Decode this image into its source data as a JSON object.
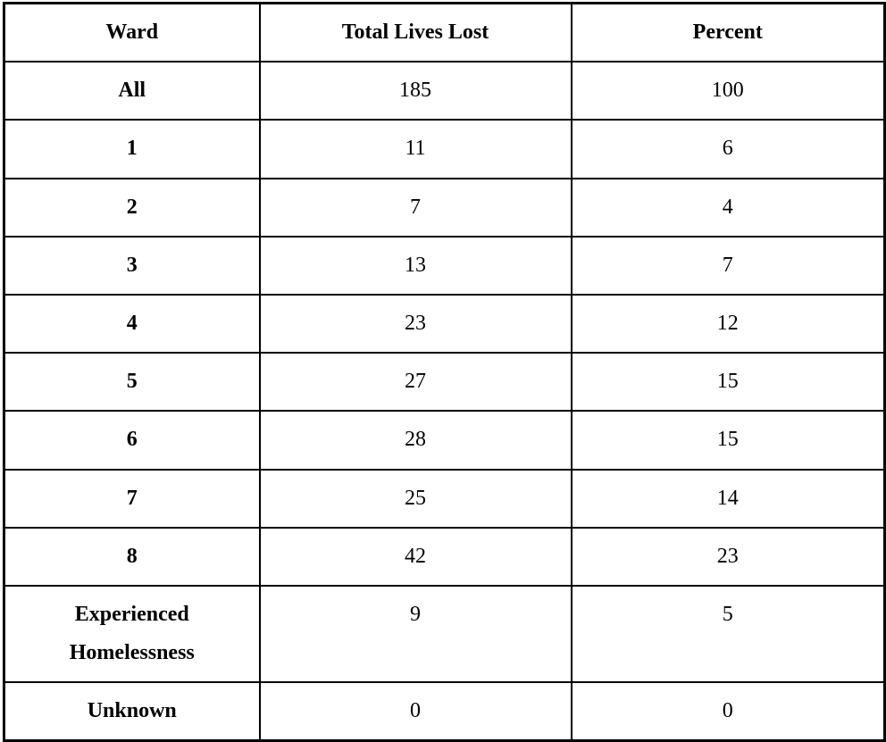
{
  "table": {
    "columns": [
      "Ward",
      "Total Lives Lost",
      "Percent"
    ],
    "rows": [
      {
        "ward": "All",
        "total": "185",
        "percent": "100"
      },
      {
        "ward": "1",
        "total": "11",
        "percent": "6"
      },
      {
        "ward": "2",
        "total": "7",
        "percent": "4"
      },
      {
        "ward": "3",
        "total": "13",
        "percent": "7"
      },
      {
        "ward": "4",
        "total": "23",
        "percent": "12"
      },
      {
        "ward": "5",
        "total": "27",
        "percent": "15"
      },
      {
        "ward": "6",
        "total": "28",
        "percent": "15"
      },
      {
        "ward": "7",
        "total": "25",
        "percent": "14"
      },
      {
        "ward": "8",
        "total": "42",
        "percent": "23"
      },
      {
        "ward": "Experienced Homelessness",
        "total": "9",
        "percent": "5"
      },
      {
        "ward": "Unknown",
        "total": "0",
        "percent": "0"
      }
    ],
    "colors": {
      "text": "#000000",
      "border": "#000000",
      "background": "#ffffff"
    }
  }
}
